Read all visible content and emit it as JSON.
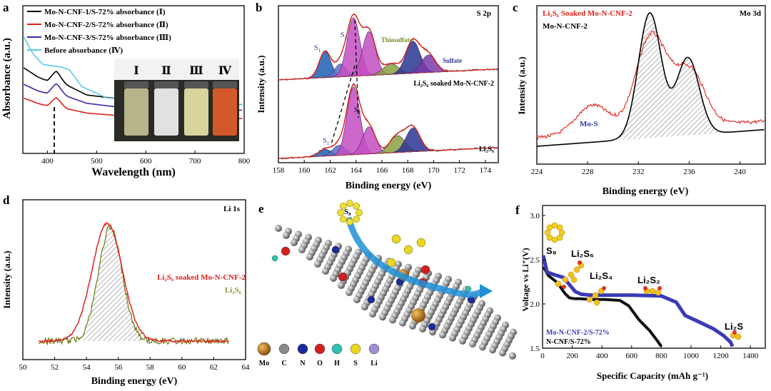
{
  "panels": {
    "a": "a",
    "b": "b",
    "c": "c",
    "d": "d",
    "e": "e",
    "f": "f"
  },
  "chart_data": [
    {
      "id": "a",
      "type": "line",
      "xlabel": "Wavelength (nm)",
      "ylabel": "Absorbance (a.u.)",
      "xlim": [
        350,
        800
      ],
      "x_ticks": [
        "400",
        "500",
        "600",
        "700",
        "800"
      ],
      "legend": [
        {
          "label": "Mo-N-CNF-1/S-72% absorbance (Ⅰ)",
          "color": "#000000"
        },
        {
          "label": "Mo-N-CNF-2/S-72% absorbance (Ⅱ)",
          "color": "#e0201a"
        },
        {
          "label": "Mo-N-CNF-3/S-72% absorbance (Ⅲ)",
          "color": "#3a2aa8"
        },
        {
          "label": "Before absorbance (Ⅳ)",
          "color": "#5bc8e8"
        }
      ],
      "series": [
        {
          "name": "I",
          "color": "#000000",
          "x": [
            350,
            380,
            400,
            418,
            440,
            480,
            550,
            650,
            800
          ],
          "y": [
            0.62,
            0.55,
            0.52,
            0.55,
            0.49,
            0.42,
            0.39,
            0.37,
            0.35
          ]
        },
        {
          "name": "II",
          "color": "#e0201a",
          "x": [
            350,
            380,
            400,
            418,
            440,
            480,
            550,
            650,
            800
          ],
          "y": [
            0.4,
            0.36,
            0.34,
            0.36,
            0.32,
            0.29,
            0.27,
            0.26,
            0.25
          ]
        },
        {
          "name": "III",
          "color": "#3a2aa8",
          "x": [
            350,
            380,
            400,
            418,
            440,
            480,
            550,
            650,
            800
          ],
          "y": [
            0.5,
            0.45,
            0.43,
            0.46,
            0.41,
            0.36,
            0.33,
            0.32,
            0.31
          ]
        },
        {
          "name": "IV",
          "color": "#5bc8e8",
          "x": [
            350,
            370,
            390,
            410,
            430,
            445,
            470,
            520,
            600,
            700,
            800
          ],
          "y": [
            0.85,
            0.72,
            0.64,
            0.63,
            0.62,
            0.6,
            0.48,
            0.4,
            0.37,
            0.36,
            0.35
          ]
        }
      ],
      "marker_x": 418,
      "vial_labels": [
        "Ⅰ",
        "Ⅱ",
        "Ⅲ",
        "Ⅳ"
      ],
      "vial_colors": [
        "#b8b48a",
        "#dfe2e0",
        "#d8d59c",
        "#d4592a"
      ]
    },
    {
      "id": "b",
      "type": "line",
      "xlabel": "Binding energy (eV)",
      "ylabel": "Intensity (a.u.)",
      "xlim": [
        158,
        175
      ],
      "x_ticks": [
        "158",
        "160",
        "162",
        "164",
        "166",
        "168",
        "170",
        "172",
        "174"
      ],
      "corner_label": "S 2p",
      "upper_label": "Li₂S₆ soaked Mo-N-CNF-2",
      "lower_label": "Li₂S₆",
      "annotations": [
        "S",
        "S",
        "Thiosulfate",
        "Sulfate",
        "S",
        "S"
      ],
      "upper_peaks": [
        {
          "center": 161.6,
          "height": 0.45,
          "width": 0.45,
          "color": "#1e5fb0"
        },
        {
          "center": 162.8,
          "height": 0.22,
          "width": 0.45,
          "color": "#5a70c8"
        },
        {
          "center": 163.8,
          "height": 1.0,
          "width": 0.5,
          "color": "#c44ec2"
        },
        {
          "center": 165.0,
          "height": 0.75,
          "width": 0.5,
          "color": "#c44ec2"
        },
        {
          "center": 166.7,
          "height": 0.18,
          "width": 0.6,
          "color": "#8ba040"
        },
        {
          "center": 168.4,
          "height": 0.55,
          "width": 0.55,
          "color": "#2a3590"
        },
        {
          "center": 169.6,
          "height": 0.3,
          "width": 0.55,
          "color": "#7a3aa8"
        }
      ],
      "lower_peaks": [
        {
          "center": 161.6,
          "height": 0.1,
          "width": 0.5,
          "color": "#1e5fb0"
        },
        {
          "center": 162.7,
          "height": 0.15,
          "width": 0.5,
          "color": "#5a70c8"
        },
        {
          "center": 163.8,
          "height": 1.0,
          "width": 0.5,
          "color": "#c44ec2"
        },
        {
          "center": 165.0,
          "height": 0.4,
          "width": 0.5,
          "color": "#c44ec2"
        },
        {
          "center": 167.2,
          "height": 0.25,
          "width": 0.6,
          "color": "#8ba040"
        },
        {
          "center": 168.4,
          "height": 0.35,
          "width": 0.55,
          "color": "#2a3590"
        }
      ]
    },
    {
      "id": "c",
      "type": "line",
      "xlabel": "Binding energy (eV)",
      "ylabel": "Intensity (a.u.)",
      "xlim": [
        224,
        242
      ],
      "x_ticks": [
        "224",
        "228",
        "232",
        "236",
        "240"
      ],
      "corner_label": "Mo 3d",
      "legend": [
        {
          "label": "Li₂S₆ Soaked Mo-N-CNF-2",
          "color": "#e0201a"
        },
        {
          "label": "Mo-N-CNF-2",
          "color": "#000000"
        }
      ],
      "annotation": "Mo-S",
      "peaks_black": [
        {
          "center": 232.9,
          "height": 1.0,
          "width": 0.9
        },
        {
          "center": 235.9,
          "height": 0.62,
          "width": 0.9
        }
      ],
      "peaks_red": [
        {
          "center": 228.4,
          "height": 0.25,
          "width": 1.3
        },
        {
          "center": 233.0,
          "height": 0.82,
          "width": 1.2
        },
        {
          "center": 236.0,
          "height": 0.5,
          "width": 1.2
        }
      ]
    },
    {
      "id": "d",
      "type": "line",
      "xlabel": "Binding energy (eV)",
      "ylabel": "Intensity (a.u.)",
      "xlim": [
        50,
        64
      ],
      "x_ticks": [
        "50",
        "52",
        "54",
        "56",
        "58",
        "60",
        "62",
        "64"
      ],
      "corner_label": "Li 1s",
      "legend": [
        {
          "label": "Li₂S₆ soaked Mo-N-CNF-2",
          "color": "#e0201a"
        },
        {
          "label": "Li₂S₆",
          "color": "#8a9a20"
        }
      ],
      "peak_red": {
        "center": 55.3,
        "height": 1.0,
        "width": 0.95
      },
      "peak_green": {
        "center": 55.5,
        "height": 0.98,
        "width": 0.75
      }
    },
    {
      "id": "f",
      "type": "line",
      "xlabel": "Specific Capacity  (mAh g⁻¹)",
      "ylabel": "Voltage vs Li⁺(V)",
      "xlim": [
        0,
        1500
      ],
      "ylim": [
        1.5,
        3.0
      ],
      "x_ticks": [
        "0",
        "200",
        "400",
        "600",
        "800",
        "1000",
        "1200",
        "1400"
      ],
      "y_ticks": [
        "1.5",
        "2.0",
        "2.5",
        "3.0"
      ],
      "legend": [
        {
          "label": "Mo-N-CNF-2/S-72%",
          "color": "#3a3ab8"
        },
        {
          "label": "N-CNF/S-72%",
          "color": "#000000"
        }
      ],
      "species": [
        "S₈",
        "Li₂S₆",
        "Li₂S₄",
        "Li₂S₂",
        "Li₂S"
      ],
      "series": [
        {
          "name": "Mo-N-CNF-2/S-72%",
          "color": "#3a3ab8",
          "x": [
            5,
            30,
            80,
            140,
            180,
            220,
            260,
            320,
            600,
            800,
            900,
            960,
            1050,
            1150,
            1220,
            1265,
            1280
          ],
          "y": [
            2.55,
            2.36,
            2.33,
            2.3,
            2.22,
            2.14,
            2.11,
            2.1,
            2.1,
            2.09,
            2.02,
            1.87,
            1.8,
            1.72,
            1.64,
            1.57,
            1.52
          ]
        },
        {
          "name": "N-CNF/S-72%",
          "color": "#111111",
          "x": [
            5,
            40,
            100,
            150,
            180,
            210,
            250,
            330,
            420,
            520,
            580,
            650,
            720,
            770,
            800
          ],
          "y": [
            2.42,
            2.32,
            2.24,
            2.12,
            2.07,
            2.06,
            2.06,
            2.05,
            2.05,
            2.04,
            1.98,
            1.82,
            1.7,
            1.59,
            1.52
          ]
        }
      ]
    }
  ],
  "legend_e": [
    "Mo",
    "C",
    "N",
    "O",
    "H",
    "S",
    "Li"
  ],
  "legend_e_colors": [
    "#b87a1a",
    "#8a8a8a",
    "#1a2a9a",
    "#d02020",
    "#30c0b0",
    "#e8d820",
    "#a090d0"
  ],
  "label_s8": "S₈"
}
